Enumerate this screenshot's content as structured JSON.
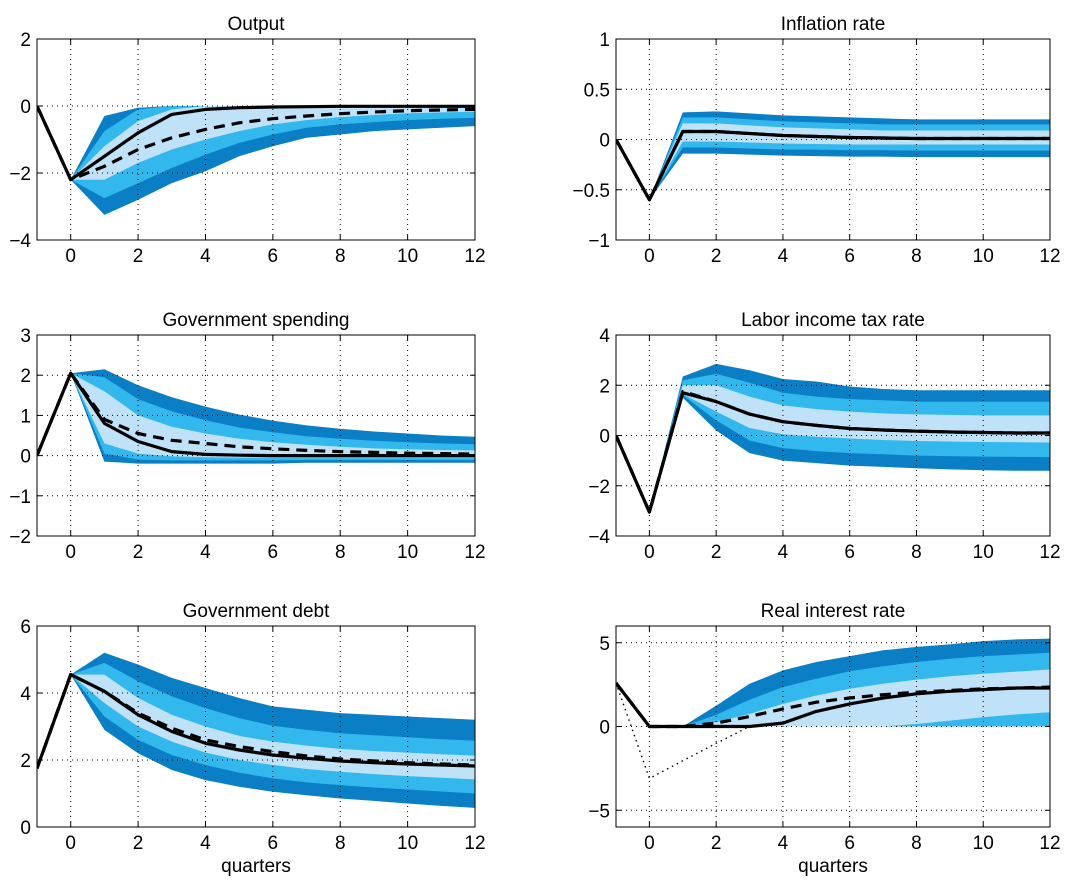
{
  "chart_data": [
    {
      "type": "line",
      "title": "Output",
      "xlabel": "",
      "xlim": [
        -1,
        12
      ],
      "ylim": [
        -4,
        2
      ],
      "xticks": [
        0,
        2,
        4,
        6,
        8,
        10,
        12
      ],
      "yticks": [
        -4,
        -2,
        0,
        2
      ],
      "ytick_labels": [
        "−4",
        "−2",
        "0",
        "2"
      ],
      "grid": true,
      "x": [
        -1,
        0,
        1,
        2,
        3,
        4,
        5,
        6,
        7,
        8,
        9,
        10,
        11,
        12
      ],
      "series": [
        {
          "style": "solid",
          "values": [
            0,
            -2.2,
            -1.5,
            -0.8,
            -0.25,
            -0.1,
            -0.05,
            -0.03,
            -0.02,
            -0.01,
            -0.01,
            -0.01,
            -0.01,
            -0.01
          ]
        },
        {
          "style": "dashed",
          "values": [
            0,
            -2.2,
            -1.8,
            -1.3,
            -0.95,
            -0.7,
            -0.5,
            -0.38,
            -0.3,
            -0.23,
            -0.18,
            -0.14,
            -0.12,
            -0.1
          ]
        }
      ],
      "bands": [
        {
          "color": "#0a7fc5",
          "lower": [
            0,
            -2.2,
            -3.25,
            -2.8,
            -2.3,
            -1.95,
            -1.5,
            -1.2,
            -0.95,
            -0.85,
            -0.75,
            -0.7,
            -0.65,
            -0.6
          ],
          "upper": [
            0,
            -2.2,
            -0.3,
            -0.05,
            0,
            0,
            0,
            0,
            0,
            0,
            0,
            0,
            0,
            0
          ]
        },
        {
          "color": "#32b8ec",
          "lower": [
            0,
            -2.2,
            -2.75,
            -2.3,
            -1.85,
            -1.45,
            -1.1,
            -0.85,
            -0.65,
            -0.55,
            -0.48,
            -0.42,
            -0.38,
            -0.35
          ],
          "upper": [
            0,
            -2.2,
            -0.75,
            -0.1,
            0,
            0,
            0,
            0,
            0,
            0,
            0,
            0,
            0,
            0
          ]
        },
        {
          "color": "#bfe2f9",
          "lower": [
            0,
            -2.2,
            -2.2,
            -1.7,
            -1.3,
            -1.0,
            -0.75,
            -0.55,
            -0.42,
            -0.33,
            -0.27,
            -0.22,
            -0.19,
            -0.17
          ],
          "upper": [
            0,
            -2.2,
            -1.2,
            -0.45,
            -0.1,
            0,
            0,
            0,
            0,
            0,
            0,
            0,
            0,
            0
          ]
        }
      ]
    },
    {
      "type": "line",
      "title": "Inflation rate",
      "xlabel": "",
      "xlim": [
        -1,
        12
      ],
      "ylim": [
        -1,
        1
      ],
      "xticks": [
        0,
        2,
        4,
        6,
        8,
        10,
        12
      ],
      "yticks": [
        -1,
        -0.5,
        0,
        0.5,
        1
      ],
      "ytick_labels": [
        "−1",
        "−0.5",
        "0",
        "0.5",
        "1"
      ],
      "grid": true,
      "x": [
        -1,
        0,
        1,
        2,
        3,
        4,
        5,
        6,
        7,
        8,
        9,
        10,
        11,
        12
      ],
      "series": [
        {
          "style": "solid",
          "values": [
            0,
            -0.6,
            0.08,
            0.08,
            0.06,
            0.04,
            0.03,
            0.02,
            0.015,
            0.01,
            0.01,
            0.01,
            0.01,
            0.01
          ]
        },
        {
          "style": "dashed",
          "values": [
            0,
            -0.6,
            0.08,
            0.08,
            0.06,
            0.04,
            0.03,
            0.02,
            0.015,
            0.01,
            0.01,
            0.01,
            0.01,
            0.01
          ]
        }
      ],
      "bands": [
        {
          "color": "#0a7fc5",
          "lower": [
            0,
            -0.6,
            -0.14,
            -0.14,
            -0.15,
            -0.16,
            -0.165,
            -0.17,
            -0.17,
            -0.175,
            -0.175,
            -0.175,
            -0.175,
            -0.175
          ],
          "upper": [
            0,
            -0.6,
            0.27,
            0.28,
            0.26,
            0.24,
            0.23,
            0.22,
            0.21,
            0.2,
            0.2,
            0.2,
            0.2,
            0.2
          ]
        },
        {
          "color": "#32b8ec",
          "lower": [
            0,
            -0.6,
            -0.08,
            -0.08,
            -0.09,
            -0.1,
            -0.1,
            -0.105,
            -0.105,
            -0.11,
            -0.11,
            -0.11,
            -0.11,
            -0.11
          ],
          "upper": [
            0,
            -0.6,
            0.22,
            0.22,
            0.2,
            0.18,
            0.17,
            0.16,
            0.15,
            0.15,
            0.15,
            0.15,
            0.15,
            0.15
          ]
        },
        {
          "color": "#bfe2f9",
          "lower": [
            0,
            -0.6,
            -0.02,
            -0.02,
            -0.03,
            -0.04,
            -0.045,
            -0.05,
            -0.05,
            -0.05,
            -0.05,
            -0.05,
            -0.05,
            -0.05
          ],
          "upper": [
            0,
            -0.6,
            0.16,
            0.16,
            0.14,
            0.12,
            0.11,
            0.1,
            0.09,
            0.09,
            0.09,
            0.09,
            0.09,
            0.09
          ]
        }
      ]
    },
    {
      "type": "line",
      "title": "Government spending",
      "xlabel": "",
      "xlim": [
        -1,
        12
      ],
      "ylim": [
        -2,
        3
      ],
      "xticks": [
        0,
        2,
        4,
        6,
        8,
        10,
        12
      ],
      "yticks": [
        -2,
        -1,
        0,
        1,
        2,
        3
      ],
      "ytick_labels": [
        "−2",
        "−1",
        "0",
        "1",
        "2",
        "3"
      ],
      "grid": true,
      "x": [
        -1,
        0,
        1,
        2,
        3,
        4,
        5,
        6,
        7,
        8,
        9,
        10,
        11,
        12
      ],
      "series": [
        {
          "style": "solid",
          "values": [
            0,
            2.05,
            0.8,
            0.35,
            0.1,
            0.03,
            0.01,
            0,
            0,
            0,
            0,
            0,
            0,
            0
          ]
        },
        {
          "style": "dashed",
          "values": [
            0,
            2.05,
            0.9,
            0.55,
            0.38,
            0.3,
            0.22,
            0.17,
            0.13,
            0.1,
            0.08,
            0.06,
            0.05,
            0.04
          ]
        }
      ],
      "bands": [
        {
          "color": "#0a7fc5",
          "lower": [
            0,
            2.05,
            -0.15,
            -0.2,
            -0.2,
            -0.2,
            -0.2,
            -0.2,
            -0.18,
            -0.18,
            -0.18,
            -0.18,
            -0.18,
            -0.18
          ],
          "upper": [
            0,
            2.05,
            2.15,
            1.75,
            1.45,
            1.22,
            1.02,
            0.87,
            0.75,
            0.67,
            0.6,
            0.55,
            0.5,
            0.47
          ]
        },
        {
          "color": "#32b8ec",
          "lower": [
            0,
            2.05,
            0.05,
            -0.1,
            -0.12,
            -0.12,
            -0.12,
            -0.12,
            -0.11,
            -0.11,
            -0.11,
            -0.11,
            -0.11,
            -0.11
          ],
          "upper": [
            0,
            2.05,
            1.95,
            1.4,
            1.1,
            0.88,
            0.7,
            0.58,
            0.48,
            0.42,
            0.37,
            0.33,
            0.3,
            0.28
          ]
        },
        {
          "color": "#bfe2f9",
          "lower": [
            0,
            2.05,
            0.3,
            0.05,
            -0.02,
            -0.04,
            -0.05,
            -0.05,
            -0.05,
            -0.05,
            -0.05,
            -0.05,
            -0.05,
            -0.05
          ],
          "upper": [
            0,
            2.05,
            1.6,
            1.0,
            0.72,
            0.55,
            0.42,
            0.33,
            0.27,
            0.22,
            0.18,
            0.16,
            0.14,
            0.13
          ]
        }
      ]
    },
    {
      "type": "line",
      "title": "Labor income tax rate",
      "xlabel": "",
      "xlim": [
        -1,
        12
      ],
      "ylim": [
        -4,
        4
      ],
      "xticks": [
        0,
        2,
        4,
        6,
        8,
        10,
        12
      ],
      "yticks": [
        -4,
        -2,
        0,
        2,
        4
      ],
      "ytick_labels": [
        "−4",
        "−2",
        "0",
        "2",
        "4"
      ],
      "grid": true,
      "x": [
        -1,
        0,
        1,
        2,
        3,
        4,
        5,
        6,
        7,
        8,
        9,
        10,
        11,
        12
      ],
      "series": [
        {
          "style": "solid",
          "values": [
            0,
            -3.05,
            1.7,
            1.35,
            0.85,
            0.55,
            0.4,
            0.28,
            0.22,
            0.17,
            0.14,
            0.12,
            0.1,
            0.1
          ]
        },
        {
          "style": "dashed",
          "values": [
            0,
            -3.05,
            1.75,
            1.35,
            0.85,
            0.55,
            0.4,
            0.28,
            0.22,
            0.17,
            0.14,
            0.12,
            0.1,
            0.1
          ]
        }
      ],
      "bands": [
        {
          "color": "#0a7fc5",
          "lower": [
            0,
            -3.05,
            1.5,
            0.2,
            -0.7,
            -1.0,
            -1.1,
            -1.2,
            -1.25,
            -1.3,
            -1.35,
            -1.38,
            -1.4,
            -1.4
          ],
          "upper": [
            0,
            -3.05,
            2.35,
            2.85,
            2.6,
            2.25,
            2.15,
            1.95,
            1.85,
            1.8,
            1.8,
            1.8,
            1.8,
            1.8
          ]
        },
        {
          "color": "#32b8ec",
          "lower": [
            0,
            -3.05,
            1.6,
            0.6,
            -0.2,
            -0.5,
            -0.62,
            -0.7,
            -0.75,
            -0.8,
            -0.82,
            -0.84,
            -0.85,
            -0.86
          ],
          "upper": [
            0,
            -3.05,
            2.2,
            2.45,
            2.1,
            1.7,
            1.55,
            1.45,
            1.4,
            1.35,
            1.35,
            1.35,
            1.35,
            1.35
          ]
        },
        {
          "color": "#bfe2f9",
          "lower": [
            0,
            -3.05,
            1.65,
            0.95,
            0.3,
            0.05,
            -0.05,
            -0.12,
            -0.18,
            -0.22,
            -0.24,
            -0.26,
            -0.27,
            -0.28
          ],
          "upper": [
            0,
            -3.05,
            2.0,
            2.0,
            1.55,
            1.2,
            1.05,
            0.95,
            0.88,
            0.84,
            0.82,
            0.8,
            0.8,
            0.8
          ]
        }
      ]
    },
    {
      "type": "line",
      "title": "Government debt",
      "xlabel": "quarters",
      "xlim": [
        -1,
        12
      ],
      "ylim": [
        0,
        6
      ],
      "xticks": [
        0,
        2,
        4,
        6,
        8,
        10,
        12
      ],
      "yticks": [
        0,
        2,
        4,
        6
      ],
      "ytick_labels": [
        "0",
        "2",
        "4",
        "6"
      ],
      "grid": true,
      "x": [
        -1,
        0,
        1,
        2,
        3,
        4,
        5,
        6,
        7,
        8,
        9,
        10,
        11,
        12
      ],
      "series": [
        {
          "style": "solid",
          "values": [
            1.75,
            4.55,
            4.05,
            3.35,
            2.85,
            2.5,
            2.3,
            2.15,
            2.05,
            1.97,
            1.92,
            1.88,
            1.85,
            1.82
          ]
        },
        {
          "style": "dashed",
          "values": [
            1.75,
            4.55,
            4.05,
            3.4,
            2.95,
            2.6,
            2.4,
            2.25,
            2.12,
            2.03,
            1.97,
            1.92,
            1.88,
            1.85
          ]
        }
      ],
      "bands": [
        {
          "color": "#0a7fc5",
          "lower": [
            1.75,
            4.55,
            2.9,
            2.2,
            1.7,
            1.4,
            1.2,
            1.05,
            0.95,
            0.85,
            0.78,
            0.7,
            0.63,
            0.57
          ]
        },
        {
          "color": "#32b8ec",
          "lower": [
            1.75,
            4.55,
            3.3,
            2.6,
            2.15,
            1.85,
            1.62,
            1.45,
            1.33,
            1.25,
            1.18,
            1.12,
            1.06,
            1.0
          ]
        },
        {
          "color": "#bfe2f9",
          "lower": [
            1.75,
            4.55,
            3.7,
            3.0,
            2.55,
            2.22,
            2.0,
            1.85,
            1.73,
            1.65,
            1.58,
            1.52,
            1.47,
            1.42
          ]
        }
      ],
      "bands_upper": [
        [
          1.75,
          4.55,
          5.2,
          4.85,
          4.45,
          4.15,
          3.85,
          3.6,
          3.5,
          3.4,
          3.35,
          3.3,
          3.25,
          3.2
        ],
        [
          1.75,
          4.55,
          4.9,
          4.35,
          3.9,
          3.55,
          3.25,
          3.02,
          2.9,
          2.8,
          2.74,
          2.68,
          2.62,
          2.58
        ],
        [
          1.75,
          4.55,
          4.55,
          3.85,
          3.35,
          3.0,
          2.72,
          2.55,
          2.43,
          2.33,
          2.27,
          2.22,
          2.17,
          2.13
        ]
      ]
    },
    {
      "type": "line",
      "title": "Real interest rate",
      "xlabel": "quarters",
      "xlim": [
        -1,
        12
      ],
      "ylim": [
        -6,
        6
      ],
      "xticks": [
        0,
        2,
        4,
        6,
        8,
        10,
        12
      ],
      "yticks": [
        -5,
        0,
        5
      ],
      "ytick_labels": [
        "−5",
        "0",
        "5"
      ],
      "grid": true,
      "x": [
        -1,
        0,
        1,
        2,
        3,
        4,
        5,
        6,
        7,
        8,
        9,
        10,
        11,
        12
      ],
      "series": [
        {
          "style": "solid",
          "values": [
            2.6,
            0,
            0,
            0,
            0,
            0.2,
            0.9,
            1.35,
            1.7,
            1.95,
            2.1,
            2.2,
            2.3,
            2.3
          ]
        },
        {
          "style": "dashed",
          "values": [
            2.6,
            0,
            0,
            0.2,
            0.6,
            1.05,
            1.45,
            1.7,
            1.9,
            2.05,
            2.15,
            2.25,
            2.3,
            2.35
          ]
        },
        {
          "style": "dotted",
          "values": [
            2.6,
            -3.1,
            -2.05,
            -1.0,
            0,
            null,
            null,
            null,
            null,
            null,
            null,
            null,
            null,
            null
          ]
        }
      ],
      "bands": [
        {
          "color": "#0a7fc5",
          "lower": [
            2.6,
            0,
            0,
            0,
            0,
            0,
            0,
            0,
            0,
            0,
            0,
            0,
            0,
            0
          ],
          "upper": [
            2.6,
            0,
            0,
            1.25,
            2.55,
            3.35,
            3.85,
            4.2,
            4.55,
            4.75,
            4.9,
            5.1,
            5.2,
            5.25
          ]
        },
        {
          "color": "#32b8ec",
          "lower": [
            2.6,
            0,
            0,
            0,
            0,
            0,
            0,
            0,
            0,
            0,
            0,
            0,
            0,
            0
          ],
          "upper": [
            2.6,
            0,
            0,
            0.7,
            1.6,
            2.35,
            2.85,
            3.3,
            3.6,
            3.85,
            4.05,
            4.2,
            4.3,
            4.4
          ]
        },
        {
          "color": "#bfe2f9",
          "lower": [
            2.6,
            0,
            0,
            0,
            0,
            0,
            0,
            0,
            0,
            0.15,
            0.35,
            0.55,
            0.72,
            0.85
          ],
          "upper": [
            2.6,
            0,
            0,
            0.25,
            0.75,
            1.35,
            1.85,
            2.25,
            2.55,
            2.8,
            3.0,
            3.15,
            3.28,
            3.4
          ]
        }
      ]
    }
  ]
}
